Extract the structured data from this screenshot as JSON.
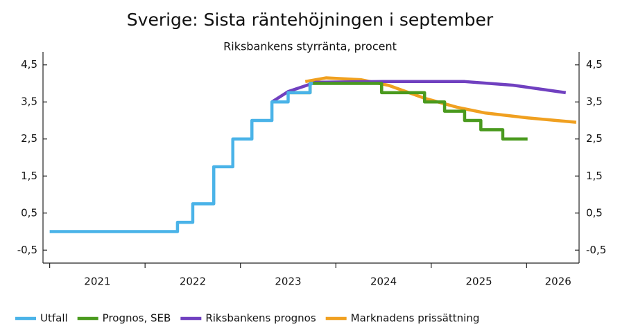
{
  "chart_data": {
    "type": "line",
    "title": "Sverige: Sista räntehöjningen i september",
    "subtitle": "Riksbankens styrränta, procent",
    "xlim": [
      2020.93,
      2026.55
    ],
    "xticks": [
      2021,
      2022,
      2023,
      2024,
      2025,
      2026
    ],
    "ylim": [
      -0.85,
      4.85
    ],
    "yticks": [
      {
        "value": -0.5,
        "label": "-0,5"
      },
      {
        "value": 0.5,
        "label": "0,5"
      },
      {
        "value": 1.5,
        "label": "1,5"
      },
      {
        "value": 2.5,
        "label": "2,5"
      },
      {
        "value": 3.5,
        "label": "3,5"
      },
      {
        "value": 4.5,
        "label": "4,5"
      }
    ],
    "legend": "bottom",
    "series": [
      {
        "name": "Utfall",
        "color": "#4ab3e8",
        "step": true,
        "x": [
          2021.0,
          2022.34,
          2022.5,
          2022.72,
          2022.92,
          2023.12,
          2023.33,
          2023.5,
          2023.73,
          2023.76
        ],
        "values": [
          0,
          0.25,
          0.75,
          1.75,
          2.5,
          3.0,
          3.5,
          3.75,
          4.0,
          4.0
        ]
      },
      {
        "name": "Prognos, SEB",
        "color": "#4a9a1e",
        "step": true,
        "x": [
          2023.51,
          2023.73,
          2024.48,
          2024.93,
          2025.14,
          2025.35,
          2025.52,
          2025.75,
          2026.01
        ],
        "values": [
          3.75,
          4.0,
          3.75,
          3.5,
          3.25,
          3.0,
          2.75,
          2.5,
          2.5
        ]
      },
      {
        "name": "Riksbankens prognos",
        "color": "#7040c0",
        "step": false,
        "x": [
          2023.33,
          2023.5,
          2023.79,
          2024.5,
          2025.35,
          2025.86,
          2026.41
        ],
        "values": [
          3.5,
          3.78,
          4.03,
          4.05,
          4.05,
          3.95,
          3.75
        ]
      },
      {
        "name": "Marknadens prissättning",
        "color": "#f0a020",
        "step": false,
        "x": [
          2023.68,
          2023.9,
          2024.26,
          2024.55,
          2024.93,
          2025.28,
          2025.57,
          2026.01,
          2026.52
        ],
        "values": [
          4.05,
          4.15,
          4.1,
          3.95,
          3.6,
          3.35,
          3.2,
          3.07,
          2.95
        ]
      }
    ]
  }
}
